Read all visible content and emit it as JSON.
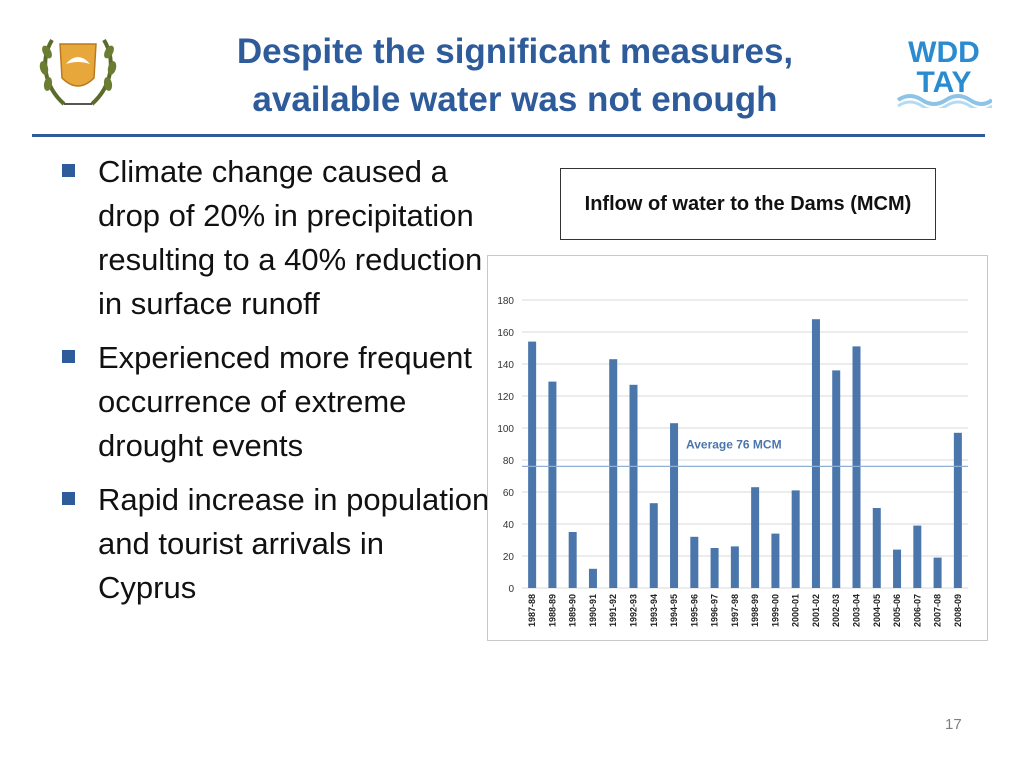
{
  "slide": {
    "title_line1": "Despite the significant measures,",
    "title_line2": "available water was not enough",
    "page_number": "17",
    "logo_right_text_1": "WDD",
    "logo_right_text_2": "TAY",
    "bullets": [
      "Climate change caused a drop of 20% in precipitation resulting to a 40% reduction in surface runoff",
      "Experienced more frequent occurrence of extreme drought events",
      "Rapid increase in population and tourist arrivals in Cyprus"
    ],
    "colors": {
      "title": "#2e5b9a",
      "bar": "#4a76ac",
      "average_line": "#8fb0d6",
      "bullet": "#2e5b9a"
    }
  },
  "chart_data": {
    "type": "bar",
    "title": "Inflow of water to the Dams (MCM)",
    "categories": [
      "1987-88",
      "1988-89",
      "1989-90",
      "1990-91",
      "1991-92",
      "1992-93",
      "1993-94",
      "1994-95",
      "1995-96",
      "1996-97",
      "1997-98",
      "1998-99",
      "1999-00",
      "2000-01",
      "2001-02",
      "2002-03",
      "2003-04",
      "2004-05",
      "2005-06",
      "2006-07",
      "2007-08",
      "2008-09"
    ],
    "values": [
      154,
      129,
      35,
      12,
      143,
      127,
      53,
      103,
      32,
      25,
      26,
      63,
      34,
      61,
      168,
      136,
      151,
      50,
      24,
      39,
      19,
      97
    ],
    "ylim": [
      0,
      180
    ],
    "yticks": [
      "0",
      "20",
      "40",
      "60",
      "80",
      "100",
      "120",
      "140",
      "160",
      "180"
    ],
    "grid": true,
    "average": {
      "value": 76,
      "label": "Average 76 MCM"
    }
  }
}
